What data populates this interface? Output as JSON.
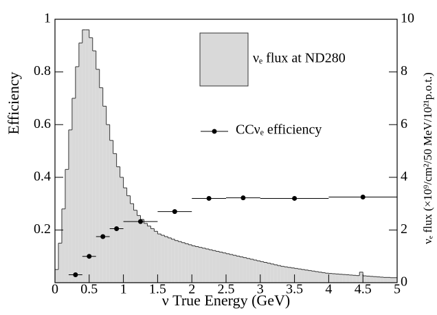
{
  "chart_data": {
    "type": "histogram",
    "xlabel": "ν True Energy (GeV)",
    "ylabel": "Efficiency",
    "y2label": "νₑ flux (×10⁹/cm²/50 MeV/10²¹p.o.t.)",
    "xlim": [
      0,
      5
    ],
    "xticks": [
      0,
      0.5,
      1,
      1.5,
      2,
      2.5,
      3,
      3.5,
      4,
      4.5,
      5
    ],
    "ylim": [
      0,
      1
    ],
    "yticks": [
      0.2,
      0.4,
      0.6,
      0.8,
      1
    ],
    "y2lim": [
      0,
      10
    ],
    "y2ticks": [
      0,
      2,
      4,
      6,
      8,
      10
    ],
    "series": [
      {
        "name": "νₑ flux at ND280",
        "type": "histogram",
        "axis": "y2",
        "color": "#d9d9d9",
        "bins": [
          0,
          0.05,
          0.1,
          0.15,
          0.2,
          0.25,
          0.3,
          0.35,
          0.4,
          0.45,
          0.5,
          0.55,
          0.6,
          0.65,
          0.7,
          0.75,
          0.8,
          0.85,
          0.9,
          0.95,
          1,
          1.05,
          1.1,
          1.15,
          1.2,
          1.25,
          1.3,
          1.35,
          1.4,
          1.45,
          1.5,
          1.55,
          1.6,
          1.65,
          1.7,
          1.75,
          1.8,
          1.85,
          1.9,
          1.95,
          2,
          2.05,
          2.1,
          2.15,
          2.2,
          2.25,
          2.3,
          2.35,
          2.4,
          2.45,
          2.5,
          2.55,
          2.6,
          2.65,
          2.7,
          2.75,
          2.8,
          2.85,
          2.9,
          2.95,
          3,
          3.05,
          3.1,
          3.15,
          3.2,
          3.25,
          3.3,
          3.35,
          3.4,
          3.45,
          3.5,
          3.55,
          3.6,
          3.65,
          3.7,
          3.75,
          3.8,
          3.85,
          3.9,
          3.95,
          4,
          4.05,
          4.1,
          4.15,
          4.2,
          4.25,
          4.3,
          4.35,
          4.4,
          4.45,
          4.5,
          4.55,
          4.6,
          4.65,
          4.7,
          4.75,
          4.8,
          4.85,
          4.9,
          4.95,
          5
        ],
        "values": [
          0.5,
          1.5,
          2.8,
          4.3,
          5.8,
          7.0,
          8.2,
          9.1,
          9.6,
          9.6,
          9.3,
          8.8,
          8.1,
          7.4,
          6.7,
          6.0,
          5.4,
          4.9,
          4.4,
          4.0,
          3.6,
          3.3,
          3.0,
          2.75,
          2.55,
          2.4,
          2.25,
          2.15,
          2.05,
          1.95,
          1.85,
          1.8,
          1.75,
          1.7,
          1.65,
          1.6,
          1.56,
          1.52,
          1.48,
          1.44,
          1.4,
          1.37,
          1.34,
          1.31,
          1.28,
          1.25,
          1.22,
          1.19,
          1.16,
          1.13,
          1.1,
          1.07,
          1.04,
          1.01,
          0.98,
          0.95,
          0.92,
          0.89,
          0.86,
          0.83,
          0.8,
          0.77,
          0.74,
          0.71,
          0.68,
          0.65,
          0.62,
          0.6,
          0.58,
          0.56,
          0.54,
          0.52,
          0.5,
          0.48,
          0.46,
          0.44,
          0.42,
          0.4,
          0.38,
          0.36,
          0.35,
          0.34,
          0.33,
          0.32,
          0.31,
          0.3,
          0.29,
          0.28,
          0.27,
          0.4,
          0.26,
          0.25,
          0.24,
          0.23,
          0.22,
          0.21,
          0.2,
          0.2,
          0.19,
          0.19
        ]
      },
      {
        "name": "CCνₑ efficiency",
        "type": "scatter",
        "axis": "y",
        "color": "#000000",
        "x": [
          0.3,
          0.5,
          0.7,
          0.9,
          1.25,
          1.75,
          2.25,
          2.75,
          3.5,
          4.5
        ],
        "values": [
          0.03,
          0.1,
          0.175,
          0.205,
          0.232,
          0.27,
          0.32,
          0.322,
          0.32,
          0.325
        ],
        "xerr": [
          0.1,
          0.1,
          0.1,
          0.1,
          0.25,
          0.25,
          0.25,
          0.25,
          0.5,
          0.5
        ]
      }
    ]
  }
}
